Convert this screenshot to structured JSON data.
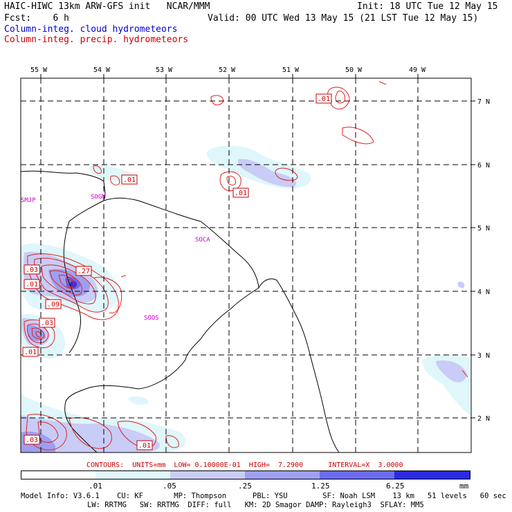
{
  "header": {
    "model_line": "HAIC-HIWC 13km ARW-GFS init   NCAR/MMM",
    "init_line": "Init: 18 UTC Tue 12 May 15",
    "fcst_line": "Fcst:    6 h",
    "valid_line": "Valid: 00 UTC Wed 13 May 15 (21 LST Tue 12 May 15)",
    "field1": "Column-integ. cloud hydrometeors",
    "field2": "Column-integ. precip. hydrometeors"
  },
  "map": {
    "lon_labels": [
      "55 W",
      "54 W",
      "53 W",
      "52 W",
      "51 W",
      "50 W",
      "49 W"
    ],
    "lat_labels": [
      "7 N",
      "6 N",
      "5 N",
      "4 N",
      "3 N",
      "2 N"
    ],
    "stations": [
      "SMJP",
      "SOGM",
      "SOCA",
      "SOOS"
    ],
    "contour_labels": [
      ".01",
      ".01",
      ".01",
      ".03",
      ".01",
      ".27",
      ".09",
      ".03",
      ".01",
      ".03",
      ".01"
    ]
  },
  "contour_info": "CONTOURS:  UNITS=mm  LOW= 0.10000E-01  HIGH=  7.2900      INTERVAL=X  3.0000",
  "colorbar": {
    "labels": [
      ".01",
      ".05",
      ".25",
      "1.25",
      "6.25",
      "mm"
    ],
    "colors": [
      "#ffffff",
      "#dff6fb",
      "#c9ccf6",
      "#9f9ff0",
      "#6b6bf0",
      "#2a2ae6"
    ]
  },
  "footer": {
    "line1": "Model Info: V3.6.1    CU: KF       MP: Thompson      PBL: YSU        SF: Noah LSM    13 km   51 levels   60 sec",
    "line2": "LW: RRTMG   SW: RRTMG  DIFF: full   KM: 2D Smagor DAMP: Rayleigh3  SFLAY: MM5"
  }
}
